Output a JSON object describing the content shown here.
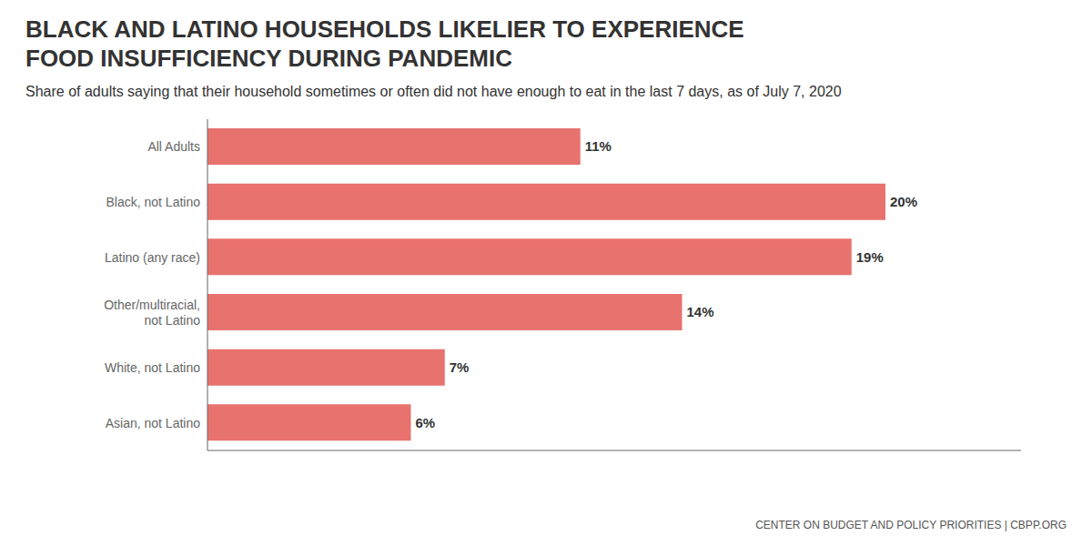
{
  "chart_data": {
    "type": "bar",
    "orientation": "horizontal",
    "title": "BLACK AND LATINO HOUSEHOLDS LIKELIER TO EXPERIENCE\nFOOD INSUFFICIENCY DURING PANDEMIC",
    "subtitle": "Share of adults saying that their household sometimes or often did not have enough to eat in the last 7 days, as of July 7, 2020",
    "categories": [
      "All Adults",
      "Black, not Latino",
      "Latino (any race)",
      "Other/multiracial,\nnot Latino",
      "White, not Latino",
      "Asian, not Latino"
    ],
    "values": [
      11,
      20,
      19,
      14,
      7,
      6
    ],
    "value_labels": [
      "11%",
      "20%",
      "19%",
      "14%",
      "7%",
      "6%"
    ],
    "data_labels": true,
    "color": "#E8726D",
    "xlim": [
      0,
      24
    ],
    "tick_labels": "y",
    "grid": false,
    "annotations": [
      "CENTER ON BUDGET AND POLICY PRIORITIES | CBPP.ORG"
    ]
  }
}
